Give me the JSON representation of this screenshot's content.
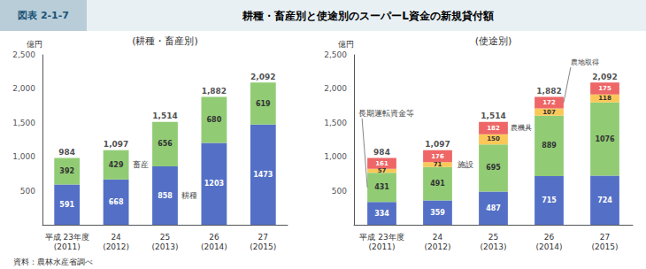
{
  "figure_label": "図表 2-1-7",
  "title": "耕種・畜産別と使途別のスーパーL資金の新規貸付額",
  "source": "資料：農林水産省調べ",
  "chart_data": [
    {
      "type": "bar",
      "stacked": true,
      "data_labels": true,
      "grid": false,
      "subtitle": "(耕種・畜産別)",
      "ylabel": "億円",
      "categories": [
        "平成 23年度\n(2011)",
        "24\n(2012)",
        "25\n(2013)",
        "26\n(2014)",
        "27\n(2015)"
      ],
      "series": [
        {
          "values": [
            591,
            668,
            858,
            1203,
            1473
          ]
        },
        {
          "values": [
            392,
            429,
            656,
            680,
            619
          ]
        }
      ],
      "totals": [
        984,
        1097,
        1514,
        1882,
        2092
      ],
      "total_labels": [
        "984",
        "1,097",
        "1,514",
        "1,882",
        "2,092"
      ],
      "annotations": [
        {
          "text": "畜産",
          "series": 1,
          "category": 1
        },
        {
          "text": "耕種",
          "series": 0,
          "category": 2
        }
      ],
      "ylim": [
        0,
        2500
      ],
      "yticks": [
        {
          "value": 0,
          "label": null
        },
        500,
        {
          "value": 1000,
          "label": "1,000"
        },
        {
          "value": 1500,
          "label": "1,500"
        },
        {
          "value": 2000,
          "label": "2,000"
        },
        {
          "value": 2500,
          "label": "2,500"
        }
      ]
    },
    {
      "type": "bar",
      "stacked": true,
      "data_labels": true,
      "grid": false,
      "subtitle": "(使途別)",
      "ylabel": "億円",
      "categories": [
        "平成 23年度\n(2011)",
        "24\n(2012)",
        "25\n(2013)",
        "26\n(2014)",
        "27\n(2015)"
      ],
      "series": [
        {
          "values": [
            334,
            359,
            487,
            715,
            724
          ]
        },
        {
          "values": [
            431,
            491,
            695,
            889,
            1076
          ]
        },
        {
          "values": [
            57,
            71,
            150,
            107,
            118
          ]
        },
        {
          "values": [
            161,
            176,
            182,
            172,
            175
          ]
        }
      ],
      "totals": [
        984,
        1097,
        1514,
        1882,
        2092
      ],
      "total_labels": [
        "984",
        "1,097",
        "1,514",
        "1,882",
        "2,092"
      ],
      "annotations": [
        {
          "text": "長期運転資金等",
          "series": 1,
          "category": 0
        },
        {
          "text": "施設",
          "series": 2,
          "category": 1
        },
        {
          "text": "農機具",
          "series": 3,
          "category": 2
        },
        {
          "text": "農地取得",
          "series": 3,
          "category": 3
        }
      ],
      "ylim": [
        0,
        2500
      ],
      "yticks": [
        {
          "value": 0,
          "label": null
        },
        500,
        {
          "value": 1000,
          "label": "1,000"
        },
        {
          "value": 1500,
          "label": "1,500"
        },
        {
          "value": 2000,
          "label": "2,000"
        },
        {
          "value": 2500,
          "label": "2,500"
        }
      ]
    }
  ]
}
